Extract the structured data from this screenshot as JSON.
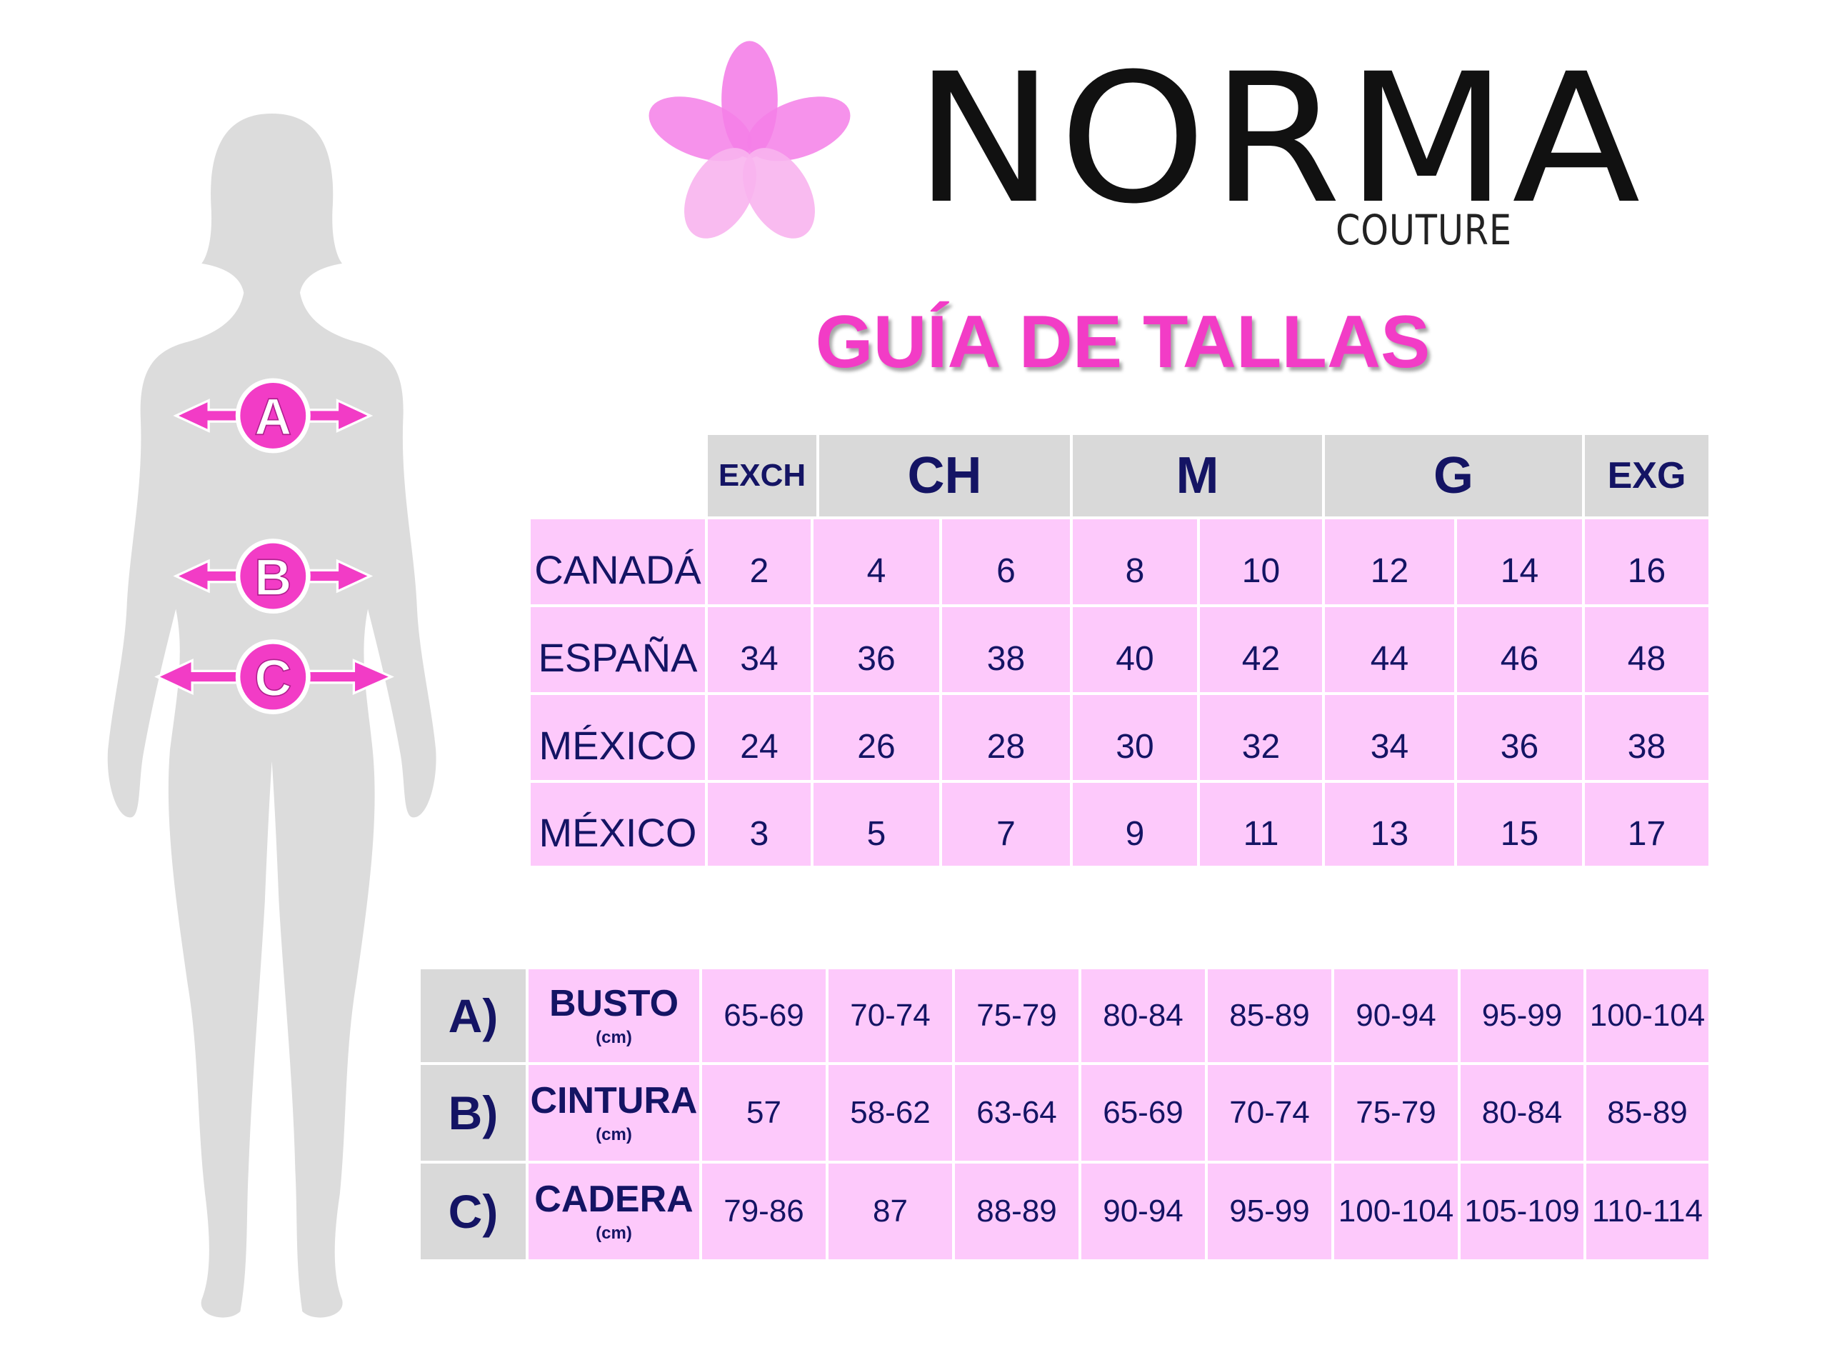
{
  "brand": {
    "name": "NORMA",
    "subtitle": "COUTURE",
    "accent_color": "#f23cc6",
    "flower_color": "#f47fe8"
  },
  "title": "GUÍA DE TALLAS",
  "figure": {
    "markers": [
      "A",
      "B",
      "C"
    ],
    "marker_color": "#f23cc6",
    "silhouette_color": "#dcdcdc"
  },
  "size_table": {
    "headers": [
      "EXCH",
      "CH",
      "M",
      "G",
      "EXG"
    ],
    "rows": [
      {
        "label": "CANADÁ",
        "values": [
          "2",
          "4",
          "6",
          "8",
          "10",
          "12",
          "14",
          "16"
        ]
      },
      {
        "label": "ESPAÑA",
        "values": [
          "34",
          "36",
          "38",
          "40",
          "42",
          "44",
          "46",
          "48"
        ]
      },
      {
        "label": "MÉXICO",
        "values": [
          "24",
          "26",
          "28",
          "30",
          "32",
          "34",
          "36",
          "38"
        ]
      },
      {
        "label": "MÉXICO",
        "values": [
          "3",
          "5",
          "7",
          "9",
          "11",
          "13",
          "15",
          "17"
        ]
      }
    ]
  },
  "measure_table": {
    "unit": "(cm)",
    "rows": [
      {
        "letter": "A)",
        "label": "BUSTO",
        "values": [
          "65-69",
          "70-74",
          "75-79",
          "80-84",
          "85-89",
          "90-94",
          "95-99",
          "100-104"
        ]
      },
      {
        "letter": "B)",
        "label": "CINTURA",
        "values": [
          "57",
          "58-62",
          "63-64",
          "65-69",
          "70-74",
          "75-79",
          "80-84",
          "85-89"
        ]
      },
      {
        "letter": "C)",
        "label": "CADERA",
        "values": [
          "79-86",
          "87",
          "88-89",
          "90-94",
          "95-99",
          "100-104",
          "105-109",
          "110-114"
        ]
      }
    ]
  },
  "colors": {
    "navy": "#141464",
    "pink_cell": "#fdc9fb",
    "grey_cell": "#d9d9d9"
  }
}
